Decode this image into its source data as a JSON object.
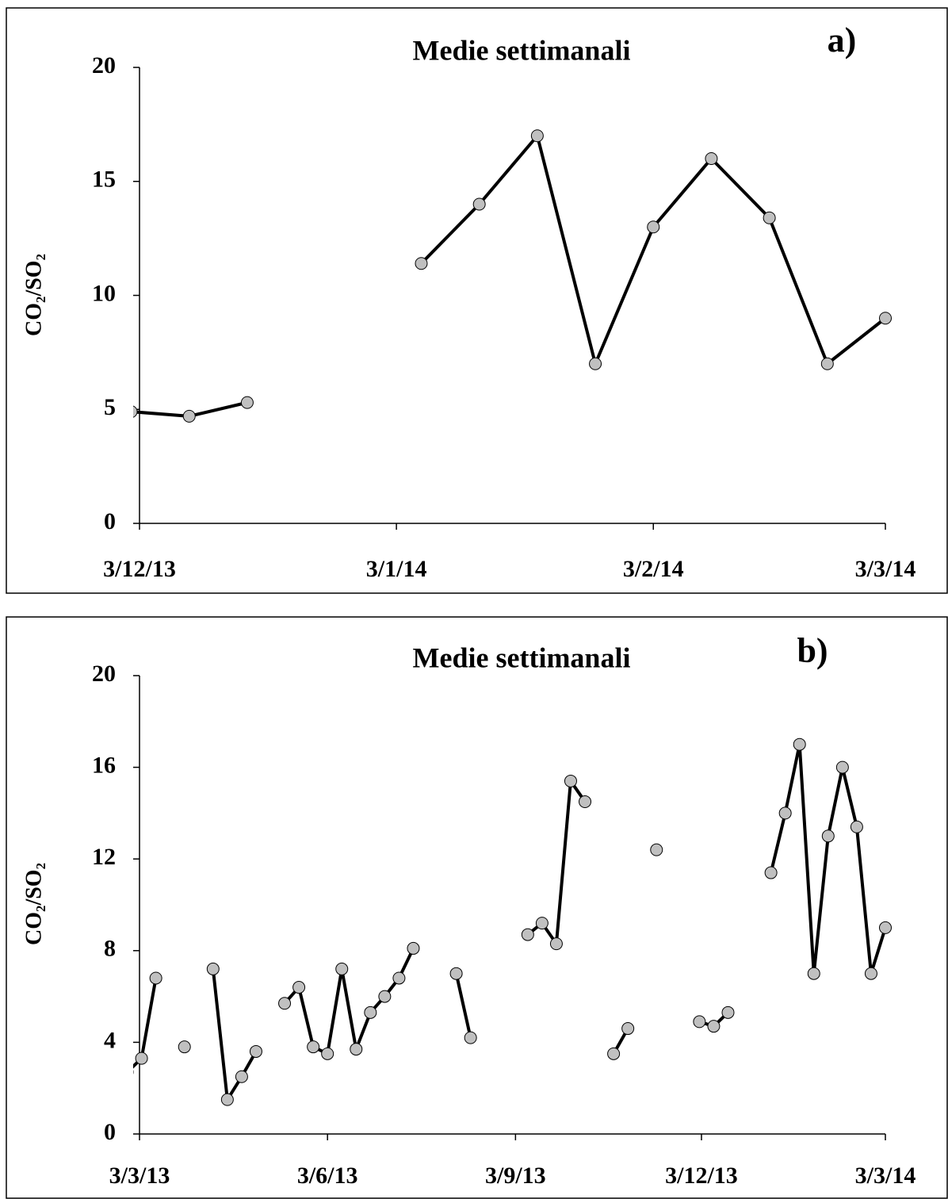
{
  "chart_data": [
    {
      "type": "line",
      "title": "Medie settimanali",
      "annotation": "a)",
      "ylabel": "CO₂/SO₂",
      "x": [
        "2013-12-02",
        "2013-12-09",
        "2013-12-16",
        "2013-12-23",
        "2013-12-30",
        "2014-01-06",
        "2014-01-13",
        "2014-01-20",
        "2014-01-27",
        "2014-02-03",
        "2014-02-10",
        "2014-02-17",
        "2014-02-24",
        "2014-03-03"
      ],
      "values": [
        4.9,
        4.7,
        5.3,
        null,
        null,
        11.4,
        14,
        17,
        7,
        13,
        16,
        13.4,
        7,
        9
      ],
      "line_color": "#000000",
      "marker_color": "#c0c0c0",
      "xlim": [
        "2013-12-03",
        "2014-03-03"
      ],
      "xticks": [
        {
          "value": "2013-12-03",
          "label": "3/12/13"
        },
        {
          "value": "2014-01-03",
          "label": "3/1/14"
        },
        {
          "value": "2014-02-03",
          "label": "3/2/14"
        },
        {
          "value": "2014-03-03",
          "label": "3/3/14"
        }
      ],
      "ylim": [
        0,
        20
      ],
      "yticks": [
        0,
        5,
        10,
        15,
        20
      ],
      "grid": false
    },
    {
      "type": "line",
      "title": "Medie settimanali",
      "annotation": "b)",
      "ylabel": "CO₂/SO₂",
      "x": [
        "2013-02-25",
        "2013-03-04",
        "2013-03-11",
        "2013-03-18",
        "2013-03-25",
        "2013-04-01",
        "2013-04-08",
        "2013-04-15",
        "2013-04-22",
        "2013-04-29",
        "2013-05-06",
        "2013-05-13",
        "2013-05-20",
        "2013-05-27",
        "2013-06-03",
        "2013-06-10",
        "2013-06-17",
        "2013-06-24",
        "2013-07-01",
        "2013-07-08",
        "2013-07-15",
        "2013-07-22",
        "2013-07-29",
        "2013-08-05",
        "2013-08-12",
        "2013-08-19",
        "2013-08-26",
        "2013-09-02",
        "2013-09-09",
        "2013-09-16",
        "2013-09-23",
        "2013-09-30",
        "2013-10-07",
        "2013-10-14",
        "2013-10-21",
        "2013-10-28",
        "2013-11-04",
        "2013-11-11",
        "2013-11-18",
        "2013-11-25",
        "2013-12-02",
        "2013-12-09",
        "2013-12-16",
        "2013-12-23",
        "2013-12-30",
        "2014-01-06",
        "2014-01-13",
        "2014-01-20",
        "2014-01-27",
        "2014-02-03",
        "2014-02-10",
        "2014-02-17",
        "2014-02-24",
        "2014-03-03"
      ],
      "values": [
        2.7,
        3.3,
        6.8,
        null,
        3.8,
        null,
        7.2,
        1.5,
        2.5,
        3.6,
        null,
        5.7,
        6.4,
        3.8,
        3.5,
        7.2,
        3.7,
        5.3,
        6.0,
        6.8,
        8.1,
        null,
        null,
        7.0,
        4.2,
        null,
        null,
        null,
        8.7,
        9.2,
        8.3,
        15.4,
        14.5,
        null,
        3.5,
        4.6,
        null,
        12.4,
        null,
        null,
        4.9,
        4.7,
        5.3,
        null,
        null,
        11.4,
        14,
        17,
        7,
        13,
        16,
        13.4,
        7,
        9
      ],
      "line_color": "#000000",
      "marker_color": "#c0c0c0",
      "xlim": [
        "2013-03-03",
        "2014-03-03"
      ],
      "xticks": [
        {
          "value": "2013-03-03",
          "label": "3/3/13"
        },
        {
          "value": "2013-06-03",
          "label": "3/6/13"
        },
        {
          "value": "2013-09-03",
          "label": "3/9/13"
        },
        {
          "value": "2013-12-03",
          "label": "3/12/13"
        },
        {
          "value": "2014-03-03",
          "label": "3/3/14"
        }
      ],
      "ylim": [
        0,
        20
      ],
      "yticks": [
        0,
        4,
        8,
        12,
        16,
        20
      ],
      "grid": false
    }
  ]
}
